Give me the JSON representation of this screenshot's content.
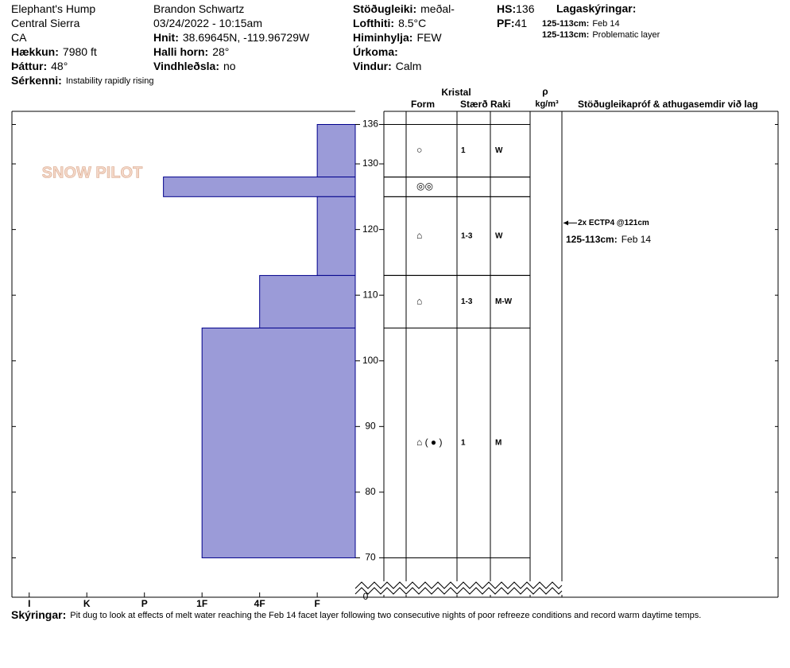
{
  "header": {
    "columns": [
      [
        {
          "value": "Elephant's Hump"
        },
        {
          "value": "Central Sierra"
        },
        {
          "value": "CA"
        },
        {
          "label": "Hækkun:",
          "value": "7980 ft"
        },
        {
          "label": "Þáttur:",
          "value": "48°"
        }
      ],
      [
        {
          "value": "Brandon Schwartz"
        },
        {
          "value": "03/24/2022 - 10:15am"
        },
        {
          "label": "Hnit:",
          "value": "38.69645N, -119.96729W"
        },
        {
          "label": "Halli horn:",
          "value": "28°"
        },
        {
          "label": "Vindhleðsla:",
          "value": "no"
        }
      ],
      [
        {
          "label": "Stöðugleiki:",
          "value": "meðal-"
        },
        {
          "label": "Lofthiti:",
          "value": "8.5°C"
        },
        {
          "label": "Himinhylja:",
          "value": "FEW"
        },
        {
          "label": "Úrkoma:"
        },
        {
          "label": "Vindur:",
          "value": "Calm"
        }
      ],
      [
        {
          "label": "HS:",
          "value": "136"
        },
        {
          "label": "PF:",
          "value": "41"
        }
      ]
    ],
    "features": {
      "label": "Sérkenni:",
      "value": "Instability rapidly rising"
    },
    "legend_title": "Lagaskýringar:",
    "legend": [
      {
        "label": "125-113cm:",
        "value": "Feb 14"
      },
      {
        "label": "125-113cm:",
        "value": "Problematic layer"
      }
    ]
  },
  "logo": "SNOW PILOT",
  "table": {
    "crystal": "Kristal",
    "form": "Form",
    "size": "Stærð",
    "moisture": "Raki",
    "rho": "ρ",
    "density_unit": "kg/m³",
    "comments": "Stöðugleikapróf & athugasemdir við lag",
    "rows": [
      {
        "form": "○",
        "size": "1",
        "moisture": "W"
      },
      {
        "form": "◎◎"
      },
      {
        "form": "⌂",
        "size": "1-3",
        "moisture": "W"
      },
      {
        "form": "⌂",
        "size": "1-3",
        "moisture": "M-W"
      },
      {
        "form": "⌂ ( ● )",
        "size": "1",
        "moisture": "M"
      }
    ],
    "test_result": "2x ECTP4 @121cm",
    "test_depth": 121,
    "layer_comment": {
      "label": "125-113cm:",
      "value": "Feb 14"
    }
  },
  "chart_data": {
    "type": "bar",
    "color": "#9b9bd8",
    "edge_color": "#00008b",
    "values": [
      1,
      3.67,
      1,
      2,
      3
    ],
    "tops": [
      136,
      128,
      125,
      113,
      105
    ],
    "bottoms": [
      128,
      125,
      113,
      105,
      70
    ],
    "xlim": [
      6.3,
      0.34
    ],
    "xticks": [
      {
        "value": 6,
        "label": "I"
      },
      {
        "value": 5,
        "label": "K"
      },
      {
        "value": 4,
        "label": "P"
      },
      {
        "value": 3,
        "label": "1F"
      },
      {
        "value": 2,
        "label": "4F"
      },
      {
        "value": 1,
        "label": "F"
      }
    ],
    "ylim": [
      64,
      138
    ],
    "yticks": [
      136,
      130,
      120,
      110,
      100,
      90,
      80,
      70
    ],
    "ground_label": 0
  },
  "notes": {
    "label": "Skýringar:",
    "value": "Pit dug to look at effects of melt water reaching the Feb 14 facet layer following two consecutive nights of poor refreeze conditions and record warm daytime temps."
  }
}
